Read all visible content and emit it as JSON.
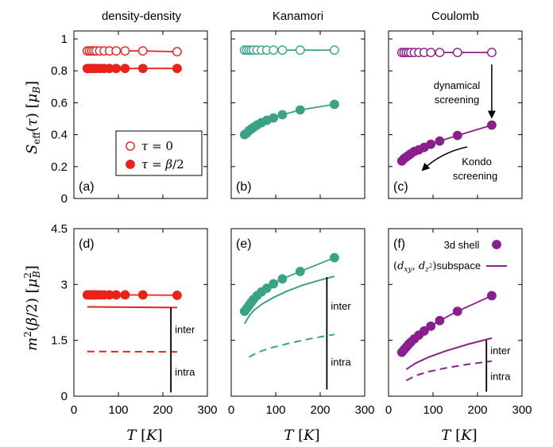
{
  "columns": [
    "density-density",
    "Kanamori",
    "Coulomb"
  ],
  "colors": {
    "density_density": "#e8231b",
    "kanamori": "#3aa387",
    "coulomb": "#8a1f8e"
  },
  "labels": {
    "ylabel_top": "S_eff(τ) [μ_B]",
    "ylabel_bottom": "m²(β/2) [μ_B²]",
    "xlabel": "T [K]",
    "panel_labels": [
      "(a)",
      "(b)",
      "(c)",
      "(d)",
      "(e)",
      "(f)"
    ],
    "legend_tau0": "τ = 0",
    "legend_tau_half": "τ = β/2",
    "legend_3d": "3d shell",
    "legend_subspace": "(d_xy, d_z²)subspace",
    "ann_dynamical_1": "dynamical",
    "ann_dynamical_2": "screening",
    "ann_kondo_1": "Kondo",
    "ann_kondo_2": "screening",
    "inter": "inter",
    "intra": "intra"
  },
  "chart_data": [
    {
      "panel": "(a)",
      "type": "scatter",
      "xlim": [
        0,
        300
      ],
      "ylim": [
        0,
        1.05
      ],
      "xticks": [
        0,
        100,
        200,
        300
      ],
      "yticks": [
        0,
        0.2,
        0.4,
        0.6,
        0.8,
        1
      ],
      "series": [
        {
          "name": "τ = 0",
          "marker": "open-circle",
          "x": [
            30,
            35,
            40,
            45,
            50,
            58,
            68,
            80,
            95,
            115,
            155,
            232
          ],
          "y": [
            0.925,
            0.925,
            0.925,
            0.925,
            0.925,
            0.925,
            0.925,
            0.925,
            0.925,
            0.925,
            0.925,
            0.92
          ]
        },
        {
          "name": "τ = β/2",
          "marker": "filled-circle",
          "x": [
            30,
            35,
            40,
            45,
            50,
            58,
            68,
            80,
            95,
            115,
            155,
            232
          ],
          "y": [
            0.815,
            0.815,
            0.815,
            0.815,
            0.815,
            0.815,
            0.815,
            0.815,
            0.815,
            0.815,
            0.815,
            0.815
          ]
        }
      ]
    },
    {
      "panel": "(b)",
      "type": "scatter",
      "xlim": [
        0,
        300
      ],
      "ylim": [
        0,
        1.05
      ],
      "xticks": [
        0,
        100,
        200,
        300
      ],
      "yticks": [
        0,
        0.2,
        0.4,
        0.6,
        0.8,
        1
      ],
      "series": [
        {
          "marker": "open-circle",
          "x": [
            30,
            35,
            40,
            45,
            50,
            58,
            68,
            80,
            95,
            115,
            155,
            232
          ],
          "y": [
            0.93,
            0.93,
            0.93,
            0.93,
            0.93,
            0.93,
            0.93,
            0.93,
            0.93,
            0.93,
            0.93,
            0.93
          ]
        },
        {
          "marker": "filled-circle",
          "x": [
            30,
            35,
            40,
            45,
            50,
            58,
            68,
            80,
            95,
            115,
            155,
            232
          ],
          "y": [
            0.4,
            0.41,
            0.425,
            0.435,
            0.445,
            0.46,
            0.475,
            0.49,
            0.505,
            0.525,
            0.555,
            0.59
          ]
        }
      ]
    },
    {
      "panel": "(c)",
      "type": "scatter",
      "xlim": [
        0,
        300
      ],
      "ylim": [
        0,
        1.05
      ],
      "xticks": [
        0,
        100,
        200,
        300
      ],
      "yticks": [
        0,
        0.2,
        0.4,
        0.6,
        0.8,
        1
      ],
      "series": [
        {
          "marker": "open-circle",
          "x": [
            30,
            35,
            40,
            45,
            50,
            58,
            68,
            80,
            95,
            115,
            155,
            232
          ],
          "y": [
            0.915,
            0.915,
            0.915,
            0.915,
            0.915,
            0.915,
            0.915,
            0.915,
            0.915,
            0.915,
            0.915,
            0.915
          ]
        },
        {
          "marker": "filled-circle",
          "x": [
            30,
            35,
            40,
            45,
            50,
            58,
            68,
            80,
            95,
            115,
            155,
            232
          ],
          "y": [
            0.235,
            0.25,
            0.26,
            0.27,
            0.28,
            0.295,
            0.305,
            0.32,
            0.34,
            0.36,
            0.395,
            0.46
          ]
        }
      ]
    },
    {
      "panel": "(d)",
      "type": "line",
      "xlim": [
        0,
        300
      ],
      "ylim": [
        0,
        4.5
      ],
      "xticks": [
        0,
        100,
        200,
        300
      ],
      "yticks": [
        0,
        1.5,
        3,
        4.5
      ],
      "series": [
        {
          "marker": "filled-circle",
          "x": [
            30,
            35,
            40,
            45,
            50,
            58,
            68,
            80,
            95,
            115,
            155,
            232
          ],
          "y": [
            2.72,
            2.72,
            2.72,
            2.72,
            2.72,
            2.72,
            2.72,
            2.72,
            2.72,
            2.72,
            2.72,
            2.71
          ]
        },
        {
          "style": "solid",
          "x": [
            30,
            232
          ],
          "y": [
            2.4,
            2.38
          ]
        },
        {
          "style": "dashed",
          "x": [
            30,
            232
          ],
          "y": [
            1.2,
            1.19
          ]
        }
      ]
    },
    {
      "panel": "(e)",
      "type": "line",
      "xlim": [
        0,
        300
      ],
      "ylim": [
        0,
        4.5
      ],
      "xticks": [
        0,
        100,
        200,
        300
      ],
      "yticks": [
        0,
        1.5,
        3,
        4.5
      ],
      "series": [
        {
          "marker": "filled-circle",
          "x": [
            30,
            35,
            40,
            45,
            50,
            58,
            68,
            80,
            95,
            115,
            155,
            232
          ],
          "y": [
            2.28,
            2.36,
            2.44,
            2.52,
            2.6,
            2.7,
            2.8,
            2.9,
            3.02,
            3.15,
            3.35,
            3.72
          ]
        },
        {
          "style": "solid",
          "x": [
            30,
            40,
            50,
            70,
            95,
            125,
            160,
            200,
            232
          ],
          "y": [
            1.95,
            2.15,
            2.3,
            2.48,
            2.65,
            2.82,
            2.98,
            3.12,
            3.22
          ]
        },
        {
          "style": "dashed",
          "x": [
            40,
            60,
            90,
            130,
            180,
            232
          ],
          "y": [
            1.05,
            1.18,
            1.3,
            1.42,
            1.55,
            1.66
          ]
        }
      ]
    },
    {
      "panel": "(f)",
      "type": "line",
      "xlim": [
        0,
        300
      ],
      "ylim": [
        0,
        4.5
      ],
      "xticks": [
        0,
        100,
        200,
        300
      ],
      "yticks": [
        0,
        1.5,
        3,
        4.5
      ],
      "series": [
        {
          "name": "3d shell",
          "marker": "filled-circle",
          "x": [
            30,
            35,
            40,
            45,
            50,
            58,
            68,
            80,
            95,
            115,
            155,
            232
          ],
          "y": [
            1.18,
            1.25,
            1.32,
            1.39,
            1.45,
            1.54,
            1.64,
            1.75,
            1.88,
            2.03,
            2.28,
            2.7
          ]
        },
        {
          "name": "(d_xy, d_z²)subspace",
          "style": "solid",
          "x": [
            40,
            60,
            90,
            130,
            180,
            232
          ],
          "y": [
            0.72,
            0.88,
            1.05,
            1.22,
            1.4,
            1.56
          ]
        },
        {
          "style": "dashed",
          "x": [
            40,
            60,
            90,
            130,
            180,
            232
          ],
          "y": [
            0.42,
            0.55,
            0.66,
            0.76,
            0.86,
            0.94
          ]
        }
      ]
    }
  ]
}
